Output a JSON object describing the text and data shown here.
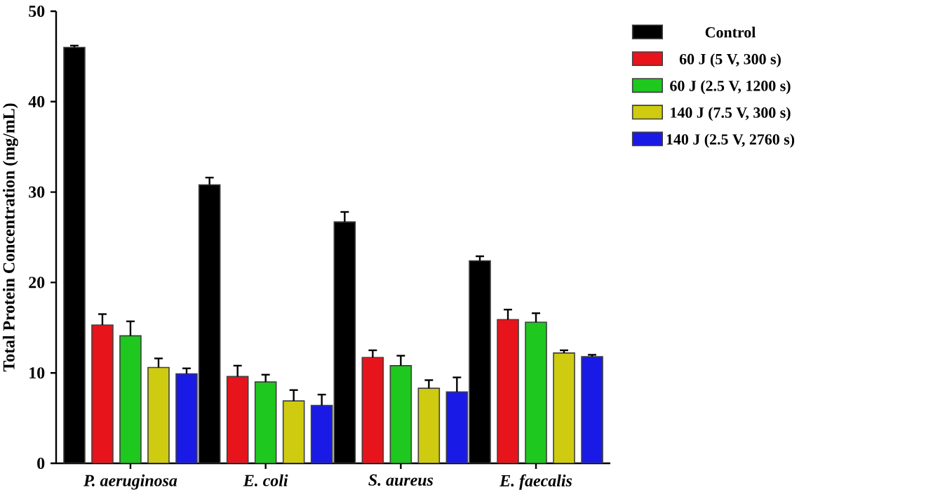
{
  "chart_data": {
    "type": "bar",
    "ylabel": "Total Protein Concentration (mg/mL)",
    "categories": [
      "P. aeruginosa",
      "E. coli",
      "S. aureus",
      "E. faecalis"
    ],
    "series": [
      {
        "name": "Control",
        "color": "#000000",
        "values": [
          46.0,
          30.8,
          26.7,
          22.4
        ],
        "errors": [
          0.2,
          0.8,
          1.1,
          0.5
        ]
      },
      {
        "name": "60 J (5 V, 300 s)",
        "color": "#e8141c",
        "values": [
          15.3,
          9.6,
          11.7,
          15.9
        ],
        "errors": [
          1.2,
          1.2,
          0.8,
          1.1
        ]
      },
      {
        "name": "60 J (2.5 V, 1200 s)",
        "color": "#1ec81e",
        "values": [
          14.1,
          9.0,
          10.8,
          15.6
        ],
        "errors": [
          1.6,
          0.8,
          1.1,
          1.0
        ]
      },
      {
        "name": "140 J (7.5 V, 300 s)",
        "color": "#cfcb10",
        "values": [
          10.6,
          6.9,
          8.3,
          12.2
        ],
        "errors": [
          1.0,
          1.2,
          0.9,
          0.3
        ]
      },
      {
        "name": "140 J (2.5 V, 2760 s)",
        "color": "#1a1ae6",
        "values": [
          9.9,
          6.4,
          7.9,
          11.8
        ],
        "errors": [
          0.6,
          1.2,
          1.6,
          0.2
        ]
      }
    ],
    "ylim": [
      0,
      50
    ],
    "yticks": [
      0,
      10,
      20,
      30,
      40,
      50
    ],
    "legend": "right"
  }
}
